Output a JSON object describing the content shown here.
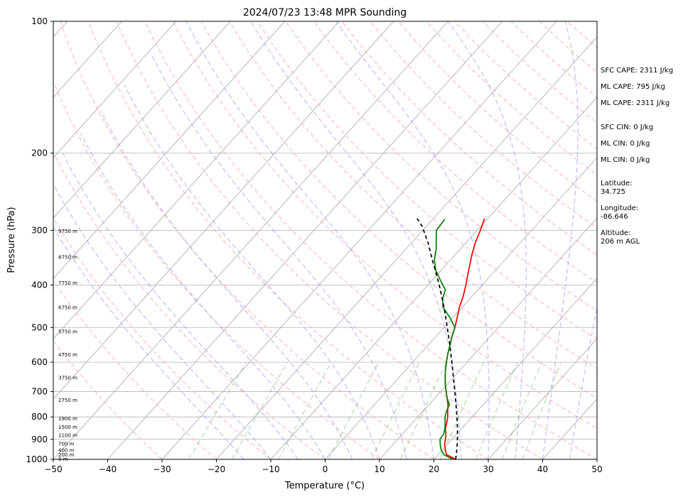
{
  "chart_data": {
    "type": "line",
    "title": "2024/07/23 13:48 MPR Sounding",
    "xlabel": "Temperature (°C)",
    "ylabel": "Pressure (hPa)",
    "xlim": [
      -50,
      50
    ],
    "ylim": [
      1000,
      100
    ],
    "y_scale": "log",
    "grid": true,
    "x_ticks": [
      "−50",
      "−40",
      "−30",
      "−20",
      "−10",
      "0",
      "10",
      "20",
      "30",
      "40",
      "50"
    ],
    "y_ticks": [
      "100",
      "200",
      "300",
      "400",
      "500",
      "600",
      "700",
      "800",
      "900",
      "1000"
    ],
    "height_labels": [
      {
        "text": "0 m",
        "p": 1000
      },
      {
        "text": "200 m",
        "p": 977
      },
      {
        "text": "400 m",
        "p": 955
      },
      {
        "text": "700 m",
        "p": 923
      },
      {
        "text": "1100 m",
        "p": 883
      },
      {
        "text": "1500 m",
        "p": 845
      },
      {
        "text": "1900 m",
        "p": 808
      },
      {
        "text": "2750 m",
        "p": 733
      },
      {
        "text": "3750 m",
        "p": 652
      },
      {
        "text": "4750 m",
        "p": 578
      },
      {
        "text": "5750 m",
        "p": 512
      },
      {
        "text": "6750 m",
        "p": 451
      },
      {
        "text": "7750 m",
        "p": 396
      },
      {
        "text": "8750 m",
        "p": 346
      },
      {
        "text": "9750 m",
        "p": 302
      }
    ],
    "series": [
      {
        "color": "#ff0000",
        "points": [
          [
            24.0,
            1000
          ],
          [
            21.5,
            975
          ],
          [
            20.5,
            950
          ],
          [
            19.5,
            925
          ],
          [
            18.8,
            900
          ],
          [
            18.0,
            875
          ],
          [
            17.0,
            850
          ],
          [
            16.3,
            825
          ],
          [
            15.5,
            800
          ],
          [
            14.5,
            775
          ],
          [
            13.5,
            750
          ],
          [
            12.3,
            725
          ],
          [
            11.0,
            700
          ],
          [
            9.7,
            675
          ],
          [
            8.5,
            650
          ],
          [
            7.3,
            625
          ],
          [
            6.2,
            600
          ],
          [
            5.1,
            575
          ],
          [
            4.1,
            550
          ],
          [
            3.0,
            525
          ],
          [
            2.0,
            500
          ],
          [
            0.8,
            475
          ],
          [
            -0.5,
            450
          ],
          [
            -1.6,
            425
          ],
          [
            -3.0,
            400
          ],
          [
            -4.3,
            380
          ],
          [
            -5.6,
            360
          ],
          [
            -7.0,
            340
          ],
          [
            -8.3,
            320
          ],
          [
            -9.4,
            300
          ],
          [
            -10.6,
            282
          ]
        ]
      },
      {
        "color": "#008000",
        "points": [
          [
            23.5,
            1000
          ],
          [
            21.0,
            975
          ],
          [
            19.7,
            950
          ],
          [
            18.7,
            925
          ],
          [
            17.8,
            900
          ],
          [
            17.6,
            875
          ],
          [
            16.9,
            850
          ],
          [
            16.0,
            825
          ],
          [
            15.0,
            800
          ],
          [
            14.3,
            775
          ],
          [
            13.8,
            750
          ],
          [
            12.3,
            725
          ],
          [
            11.0,
            700
          ],
          [
            9.7,
            675
          ],
          [
            8.5,
            650
          ],
          [
            7.3,
            625
          ],
          [
            6.2,
            600
          ],
          [
            5.1,
            575
          ],
          [
            4.1,
            550
          ],
          [
            3.0,
            525
          ],
          [
            2.0,
            500
          ],
          [
            -0.5,
            475
          ],
          [
            -3.5,
            450
          ],
          [
            -5.0,
            430
          ],
          [
            -6.0,
            410
          ],
          [
            -8.5,
            390
          ],
          [
            -11.0,
            370
          ],
          [
            -13.0,
            350
          ],
          [
            -14.5,
            330
          ],
          [
            -16.0,
            315
          ],
          [
            -17.5,
            300
          ],
          [
            -17.8,
            283
          ]
        ]
      },
      {
        "color": "#000000",
        "dashed": true,
        "points": [
          [
            24.0,
            1000
          ],
          [
            22.6,
            950
          ],
          [
            21.0,
            900
          ],
          [
            19.2,
            850
          ],
          [
            17.2,
            800
          ],
          [
            15.0,
            750
          ],
          [
            12.6,
            700
          ],
          [
            10.0,
            650
          ],
          [
            7.2,
            600
          ],
          [
            4.1,
            550
          ],
          [
            0.6,
            500
          ],
          [
            -3.3,
            450
          ],
          [
            -7.9,
            400
          ],
          [
            -13.4,
            350
          ],
          [
            -17.0,
            320
          ],
          [
            -20.9,
            293
          ],
          [
            -23.0,
            282
          ]
        ]
      }
    ]
  },
  "sidebar": {
    "sfc_cape": "SFC CAPE: 2311 J/kg",
    "ml_cape_1": "ML CAPE: 795 J/kg",
    "ml_cape_2": "ML CAPE: 2311 J/kg",
    "sfc_cin": "SFC CIN: 0 J/kg",
    "ml_cin_1": "ML CIN: 0 J/kg",
    "ml_cin_2": "ML CIN: 0 J/kg",
    "lat_label": "Latitude:",
    "lat_value": "34.725",
    "lon_label": "Longitude:",
    "lon_value": "-86.646",
    "alt_label": "Altitude:",
    "alt_value": "206 m AGL"
  }
}
